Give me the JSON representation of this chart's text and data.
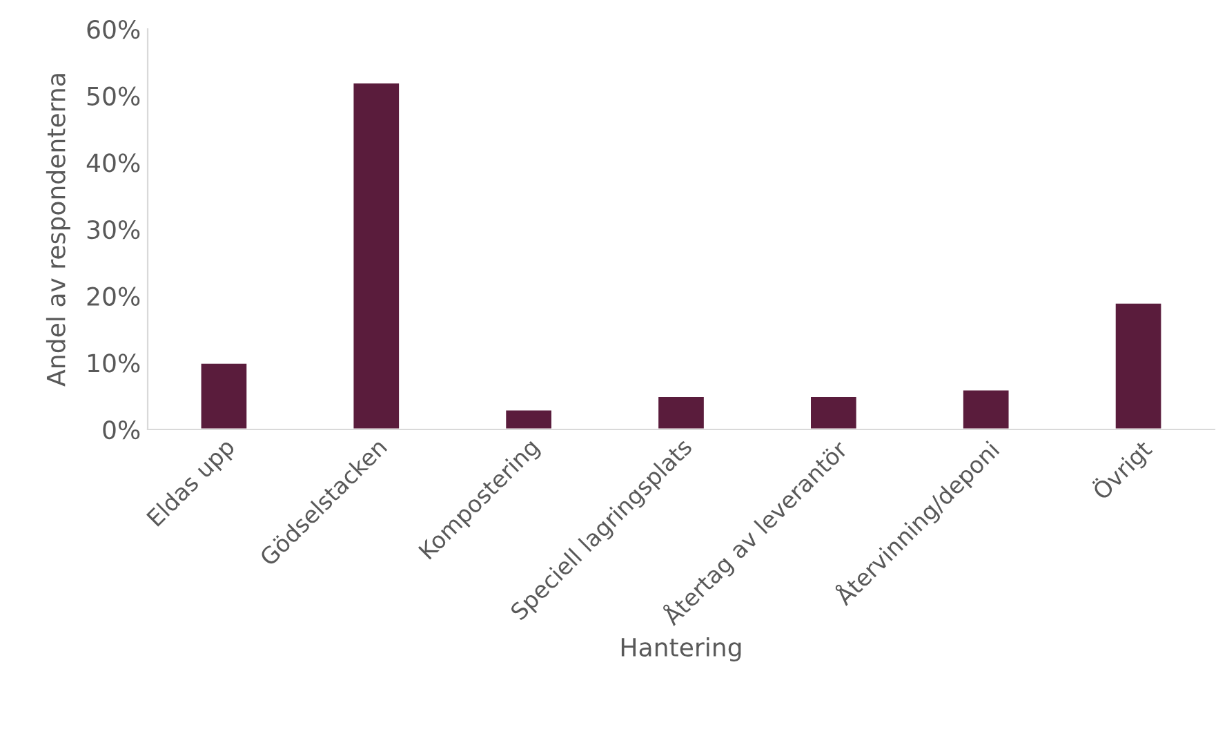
{
  "chart_data": {
    "type": "bar",
    "xlabel": "Hantering",
    "ylabel": "Andel av respondenterna",
    "categories": [
      "Eldas upp",
      "Gödselstacken",
      "Kompostering",
      "Speciell lagringsplats",
      "Återtag av leverantör",
      "Återvinning/deponi",
      "Övrigt"
    ],
    "values": [
      10,
      52,
      3,
      5,
      5,
      6,
      19
    ],
    "color": "#5a1c3c",
    "ylim": [
      0,
      60
    ],
    "yticks": [
      {
        "value": 0,
        "label": "0%"
      },
      {
        "value": 10,
        "label": "10%"
      },
      {
        "value": 20,
        "label": "20%"
      },
      {
        "value": 30,
        "label": "30%"
      },
      {
        "value": 40,
        "label": "40%"
      },
      {
        "value": 50,
        "label": "50%"
      },
      {
        "value": 60,
        "label": "60%"
      }
    ],
    "grid": false
  }
}
